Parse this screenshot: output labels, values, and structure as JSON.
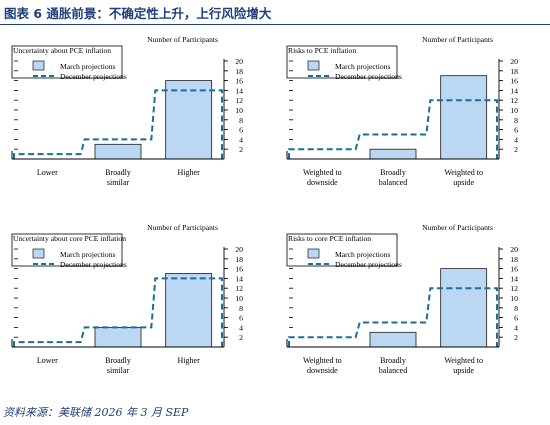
{
  "figure_title": "图表 6   通胀前景：不确定性上升，上行风险增大",
  "source_note": "资料来源：美联储 2026 年 3 月 SEP",
  "colors": {
    "bar_fill": "#bcd7f4",
    "bar_stroke": "#1a1a1a",
    "dash": "#1b6e97",
    "title": "#1f3e7a"
  },
  "chart_data": [
    {
      "type": "bar",
      "title": "Uncertainty about PCE inflation",
      "ylabel": "Number of Participants",
      "legend": [
        "March projections",
        "December projections"
      ],
      "categories": [
        "Lower",
        "Broadly similar",
        "Higher"
      ],
      "category_lines": [
        [
          "Lower"
        ],
        [
          "Broadly",
          "similar"
        ],
        [
          "Higher"
        ]
      ],
      "series": [
        {
          "name": "March projections",
          "values": [
            0,
            3,
            16
          ]
        },
        {
          "name": "December projections",
          "values": [
            1,
            4,
            14
          ]
        }
      ],
      "ylim": [
        0,
        20
      ],
      "yticks": [
        2,
        4,
        6,
        8,
        10,
        12,
        14,
        16,
        18,
        20
      ]
    },
    {
      "type": "bar",
      "title": "Risks to PCE inflation",
      "ylabel": "Number of Participants",
      "legend": [
        "March projections",
        "December projections"
      ],
      "categories": [
        "Weighted to downside",
        "Broadly balanced",
        "Weighted to upside"
      ],
      "category_lines": [
        [
          "Weighted to",
          "downside"
        ],
        [
          "Broadly",
          "balanced"
        ],
        [
          "Weighted to",
          "upside"
        ]
      ],
      "series": [
        {
          "name": "March projections",
          "values": [
            0,
            2,
            17
          ]
        },
        {
          "name": "December projections",
          "values": [
            2,
            5,
            12
          ]
        }
      ],
      "ylim": [
        0,
        20
      ],
      "yticks": [
        2,
        4,
        6,
        8,
        10,
        12,
        14,
        16,
        18,
        20
      ]
    },
    {
      "type": "bar",
      "title": "Uncertainty about core PCE inflation",
      "ylabel": "Number of Participants",
      "legend": [
        "March projections",
        "December projections"
      ],
      "categories": [
        "Lower",
        "Broadly similar",
        "Higher"
      ],
      "category_lines": [
        [
          "Lower"
        ],
        [
          "Broadly",
          "similar"
        ],
        [
          "Higher"
        ]
      ],
      "series": [
        {
          "name": "March projections",
          "values": [
            0,
            4,
            15
          ]
        },
        {
          "name": "December projections",
          "values": [
            1,
            4,
            14
          ]
        }
      ],
      "ylim": [
        0,
        20
      ],
      "yticks": [
        2,
        4,
        6,
        8,
        10,
        12,
        14,
        16,
        18,
        20
      ]
    },
    {
      "type": "bar",
      "title": "Risks to core PCE inflation",
      "ylabel": "Number of Participants",
      "legend": [
        "March projections",
        "December projections"
      ],
      "categories": [
        "Weighted to downside",
        "Broadly balanced",
        "Weighted to upside"
      ],
      "category_lines": [
        [
          "Weighted to",
          "downside"
        ],
        [
          "Broadly",
          "balanced"
        ],
        [
          "Weighted to",
          "upside"
        ]
      ],
      "series": [
        {
          "name": "March projections",
          "values": [
            0,
            3,
            16
          ]
        },
        {
          "name": "December projections",
          "values": [
            2,
            5,
            12
          ]
        }
      ],
      "ylim": [
        0,
        20
      ],
      "yticks": [
        2,
        4,
        6,
        8,
        10,
        12,
        14,
        16,
        18,
        20
      ]
    }
  ]
}
